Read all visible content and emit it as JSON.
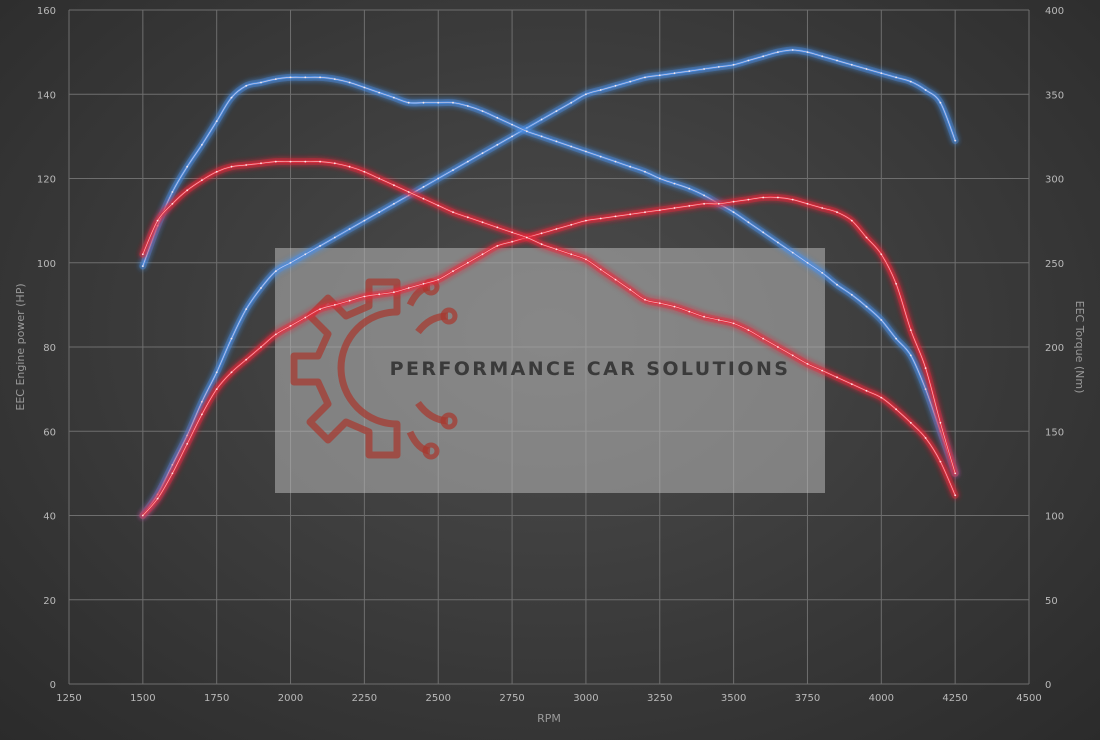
{
  "chart_data": {
    "type": "line",
    "xlabel": "RPM",
    "ylabel": "EEC Engine power (HP)",
    "y2label": "EEC Torque (Nm)",
    "xlim": [
      1250,
      4500
    ],
    "ylim": [
      0,
      160
    ],
    "y2lim": [
      0,
      400
    ],
    "xticks": [
      1250,
      1500,
      1750,
      2000,
      2250,
      2500,
      2750,
      3000,
      3250,
      3500,
      3750,
      4000,
      4250,
      4500
    ],
    "yticks": [
      0,
      20,
      40,
      60,
      80,
      100,
      120,
      140,
      160
    ],
    "y2ticks": [
      0,
      50,
      100,
      150,
      200,
      250,
      300,
      350,
      400
    ],
    "grid": true,
    "watermark": "PERFORMANCE CAR SOLUTIONS",
    "colors": {
      "tuned": "#4a8fe8",
      "stock": "#e8283a"
    },
    "series": [
      {
        "key": "tuned_power",
        "axis": "left",
        "color": "#4a8fe8",
        "x": [
          1500,
          1550,
          1600,
          1650,
          1700,
          1750,
          1800,
          1850,
          1900,
          1950,
          2000,
          2050,
          2100,
          2150,
          2200,
          2250,
          2300,
          2350,
          2400,
          2450,
          2500,
          2550,
          2600,
          2650,
          2700,
          2750,
          2800,
          2850,
          2900,
          2950,
          3000,
          3050,
          3100,
          3150,
          3200,
          3250,
          3300,
          3350,
          3400,
          3450,
          3500,
          3550,
          3600,
          3650,
          3700,
          3750,
          3800,
          3850,
          3900,
          3950,
          4000,
          4050,
          4100,
          4150,
          4200,
          4250
        ],
        "y": [
          40,
          45,
          52,
          59,
          67,
          74,
          82,
          89,
          94,
          98,
          100,
          102,
          104,
          106,
          108,
          110,
          112,
          114,
          116,
          118,
          120,
          122,
          124,
          126,
          128,
          130,
          132,
          134,
          136,
          138,
          140,
          141,
          142,
          143,
          144,
          144.5,
          145,
          145.5,
          146,
          146.5,
          147,
          148,
          149,
          150,
          150.5,
          150,
          149,
          148,
          147,
          146,
          145,
          144,
          143,
          141,
          138,
          129
        ]
      },
      {
        "key": "tuned_torque",
        "axis": "right",
        "color": "#4a8fe8",
        "x": [
          1500,
          1550,
          1600,
          1650,
          1700,
          1750,
          1800,
          1850,
          1900,
          1950,
          2000,
          2050,
          2100,
          2150,
          2200,
          2250,
          2300,
          2350,
          2400,
          2450,
          2500,
          2550,
          2600,
          2650,
          2700,
          2750,
          2800,
          2850,
          2900,
          2950,
          3000,
          3050,
          3100,
          3150,
          3200,
          3250,
          3300,
          3350,
          3400,
          3450,
          3500,
          3550,
          3600,
          3650,
          3700,
          3750,
          3800,
          3850,
          3900,
          3950,
          4000,
          4050,
          4100,
          4150,
          4200,
          4250
        ],
        "y": [
          248,
          272,
          292,
          307,
          320,
          334,
          348,
          355,
          357,
          359,
          360,
          360,
          360,
          359,
          357,
          354,
          351,
          348,
          345,
          345,
          345,
          345,
          343,
          340,
          336,
          332,
          328,
          325,
          322,
          319,
          316,
          313,
          310,
          307,
          304,
          300,
          297,
          294,
          290,
          285,
          280,
          274,
          268,
          262,
          256,
          250,
          244,
          237,
          231,
          224,
          216,
          205,
          195,
          175,
          150,
          125
        ]
      },
      {
        "key": "stock_power",
        "axis": "left",
        "color": "#e8283a",
        "x": [
          1500,
          1550,
          1600,
          1650,
          1700,
          1750,
          1800,
          1850,
          1900,
          1950,
          2000,
          2050,
          2100,
          2150,
          2200,
          2250,
          2300,
          2350,
          2400,
          2450,
          2500,
          2550,
          2600,
          2650,
          2700,
          2750,
          2800,
          2850,
          2900,
          2950,
          3000,
          3050,
          3100,
          3150,
          3200,
          3250,
          3300,
          3350,
          3400,
          3450,
          3500,
          3550,
          3600,
          3650,
          3700,
          3750,
          3800,
          3850,
          3900,
          3950,
          4000,
          4050,
          4100,
          4150,
          4200,
          4250
        ],
        "y": [
          40,
          44,
          50,
          57,
          64,
          70,
          74,
          77,
          80,
          83,
          85,
          87,
          89,
          90,
          91,
          92,
          92.5,
          93,
          94,
          95,
          96,
          98,
          100,
          102,
          104,
          105,
          106,
          107,
          108,
          109,
          110,
          110.5,
          111,
          111.5,
          112,
          112.5,
          113,
          113.5,
          114,
          114,
          114.5,
          115,
          115.5,
          115.5,
          115,
          114,
          113,
          112,
          110,
          106,
          102,
          95,
          84,
          75,
          62,
          50
        ]
      },
      {
        "key": "stock_torque",
        "axis": "right",
        "color": "#e8283a",
        "x": [
          1500,
          1550,
          1600,
          1650,
          1700,
          1750,
          1800,
          1850,
          1900,
          1950,
          2000,
          2050,
          2100,
          2150,
          2200,
          2250,
          2300,
          2350,
          2400,
          2450,
          2500,
          2550,
          2600,
          2650,
          2700,
          2750,
          2800,
          2850,
          2900,
          2950,
          3000,
          3050,
          3100,
          3150,
          3200,
          3250,
          3300,
          3350,
          3400,
          3450,
          3500,
          3550,
          3600,
          3650,
          3700,
          3750,
          3800,
          3850,
          3900,
          3950,
          4000,
          4050,
          4100,
          4150,
          4200,
          4250
        ],
        "y": [
          255,
          275,
          285,
          293,
          299,
          304,
          307,
          308,
          309,
          310,
          310,
          310,
          310,
          309,
          307,
          304,
          300,
          296,
          292,
          288,
          284,
          280,
          277,
          274,
          271,
          268,
          265,
          261,
          258,
          255,
          252,
          246,
          240,
          234,
          228,
          226,
          224,
          221,
          218,
          216,
          214,
          210,
          205,
          200,
          195,
          190,
          186,
          182,
          178,
          174,
          170,
          163,
          155,
          146,
          132,
          112
        ]
      }
    ]
  }
}
